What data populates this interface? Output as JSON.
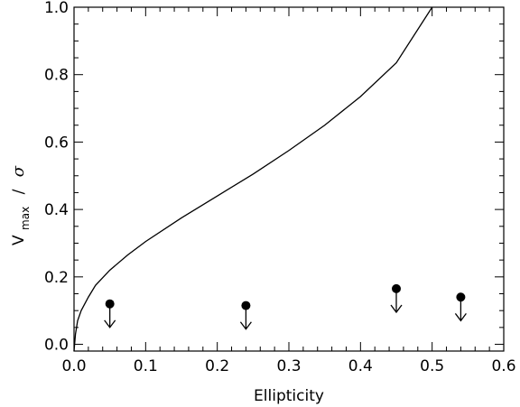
{
  "chart_data": {
    "type": "scatter",
    "xlabel": "Ellipticity",
    "ylabel": {
      "main": "V",
      "subscript": "max",
      "separator": "/",
      "denominator": "σ"
    },
    "xlim": [
      0.0,
      0.6
    ],
    "ylim": [
      -0.02,
      1.0
    ],
    "x_ticks": [
      0.0,
      0.1,
      0.2,
      0.3,
      0.4,
      0.5,
      0.6
    ],
    "x_tick_labels": [
      "0.0",
      "0.1",
      "0.2",
      "0.3",
      "0.4",
      "0.5",
      "0.6"
    ],
    "y_ticks": [
      0.0,
      0.2,
      0.4,
      0.6,
      0.8,
      1.0
    ],
    "y_tick_labels": [
      "0.0",
      "0.2",
      "0.4",
      "0.6",
      "0.8",
      "1.0"
    ],
    "grid": false,
    "series": [
      {
        "kind": "line",
        "points": [
          [
            0.0,
            -0.02
          ],
          [
            0.002,
            0.03
          ],
          [
            0.005,
            0.07
          ],
          [
            0.01,
            0.1
          ],
          [
            0.02,
            0.14
          ],
          [
            0.03,
            0.175
          ],
          [
            0.05,
            0.22
          ],
          [
            0.075,
            0.265
          ],
          [
            0.1,
            0.305
          ],
          [
            0.15,
            0.375
          ],
          [
            0.2,
            0.44
          ],
          [
            0.25,
            0.505
          ],
          [
            0.3,
            0.575
          ],
          [
            0.35,
            0.65
          ],
          [
            0.4,
            0.735
          ],
          [
            0.45,
            0.835
          ],
          [
            0.5,
            1.0
          ]
        ]
      },
      {
        "kind": "upper-limits",
        "points": [
          [
            0.05,
            0.12
          ],
          [
            0.24,
            0.115
          ],
          [
            0.45,
            0.165
          ],
          [
            0.54,
            0.14
          ]
        ],
        "arrow_length": 0.07
      }
    ]
  }
}
